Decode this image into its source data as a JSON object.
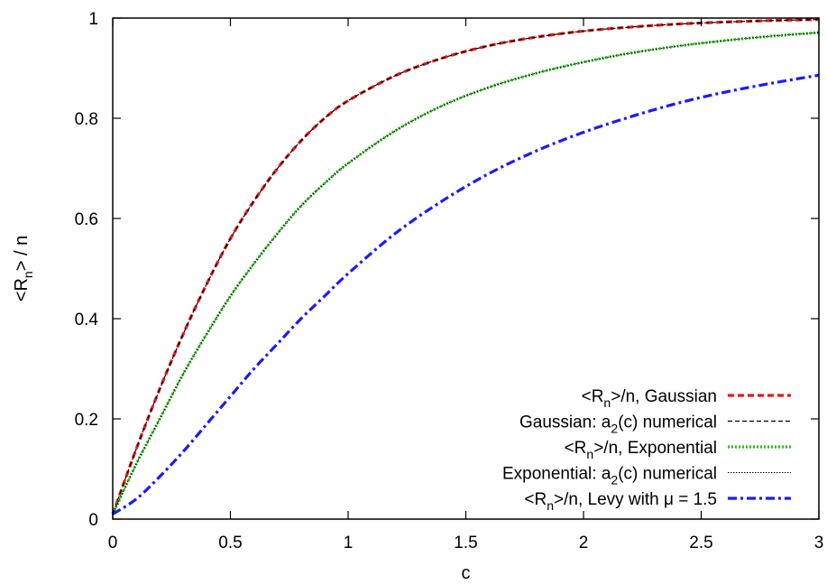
{
  "chart_data": {
    "type": "line",
    "xlabel": "c",
    "ylabel": {
      "main": "<R",
      "sub": "n",
      "tail": "> / n"
    },
    "xlim": [
      0,
      3
    ],
    "ylim": [
      0,
      1
    ],
    "xticks": [
      {
        "value": 0,
        "label": "0"
      },
      {
        "value": 0.5,
        "label": "0.5"
      },
      {
        "value": 1,
        "label": "1"
      },
      {
        "value": 1.5,
        "label": "1.5"
      },
      {
        "value": 2,
        "label": "2"
      },
      {
        "value": 2.5,
        "label": "2.5"
      },
      {
        "value": 3,
        "label": "3"
      }
    ],
    "yticks": [
      {
        "value": 0,
        "label": "0"
      },
      {
        "value": 0.2,
        "label": "0.2"
      },
      {
        "value": 0.4,
        "label": "0.4"
      },
      {
        "value": 0.6,
        "label": "0.6"
      },
      {
        "value": 0.8,
        "label": "0.8"
      },
      {
        "value": 1,
        "label": "1"
      }
    ],
    "grid": false,
    "legend_position": "bottom-right",
    "x": [
      0,
      0.1,
      0.2,
      0.3,
      0.4,
      0.5,
      0.6,
      0.7,
      0.8,
      0.9,
      1.0,
      1.2,
      1.4,
      1.6,
      1.8,
      2.0,
      2.2,
      2.4,
      2.6,
      2.8,
      3.0
    ],
    "series": [
      {
        "legend": {
          "pre": "<R",
          "sub": "n",
          "post": ">/n, Gaussian"
        },
        "color": "#e41a1c",
        "style": "dashed-thick",
        "values": [
          0.01,
          0.14,
          0.26,
          0.37,
          0.47,
          0.56,
          0.635,
          0.7,
          0.755,
          0.8,
          0.835,
          0.885,
          0.92,
          0.945,
          0.962,
          0.974,
          0.982,
          0.988,
          0.992,
          0.995,
          0.997
        ]
      },
      {
        "legend": {
          "pre": "Gaussian: a",
          "sub": "2",
          "post": "(c) numerical"
        },
        "color": "#000000",
        "style": "dashed-thin",
        "values": [
          0.01,
          0.14,
          0.26,
          0.37,
          0.47,
          0.56,
          0.635,
          0.7,
          0.755,
          0.8,
          0.835,
          0.885,
          0.92,
          0.945,
          0.962,
          0.974,
          0.982,
          0.988,
          0.992,
          0.995,
          0.997
        ]
      },
      {
        "legend": {
          "pre": "<R",
          "sub": "n",
          "post": ">/n, Exponential"
        },
        "color": "#22c40e",
        "style": "dotted-thick",
        "values": [
          0.01,
          0.11,
          0.2,
          0.29,
          0.37,
          0.445,
          0.51,
          0.57,
          0.625,
          0.67,
          0.71,
          0.775,
          0.825,
          0.862,
          0.89,
          0.912,
          0.93,
          0.944,
          0.955,
          0.964,
          0.971
        ]
      },
      {
        "legend": {
          "pre": "Exponential: a",
          "sub": "2",
          "post": "(c) numerical"
        },
        "color": "#000000",
        "style": "dotted-thin",
        "values": [
          0.01,
          0.11,
          0.2,
          0.29,
          0.37,
          0.445,
          0.51,
          0.57,
          0.625,
          0.67,
          0.71,
          0.775,
          0.825,
          0.862,
          0.89,
          0.912,
          0.93,
          0.944,
          0.955,
          0.964,
          0.971
        ]
      },
      {
        "legend": {
          "pre": "<R",
          "sub": "n",
          "post": ">/n, Levy with μ = 1.5"
        },
        "color": "#1a1aff",
        "style": "dashdot-thick",
        "values": [
          0.01,
          0.04,
          0.085,
          0.135,
          0.19,
          0.245,
          0.3,
          0.35,
          0.4,
          0.445,
          0.49,
          0.57,
          0.635,
          0.69,
          0.735,
          0.772,
          0.803,
          0.83,
          0.852,
          0.87,
          0.886
        ]
      }
    ]
  }
}
